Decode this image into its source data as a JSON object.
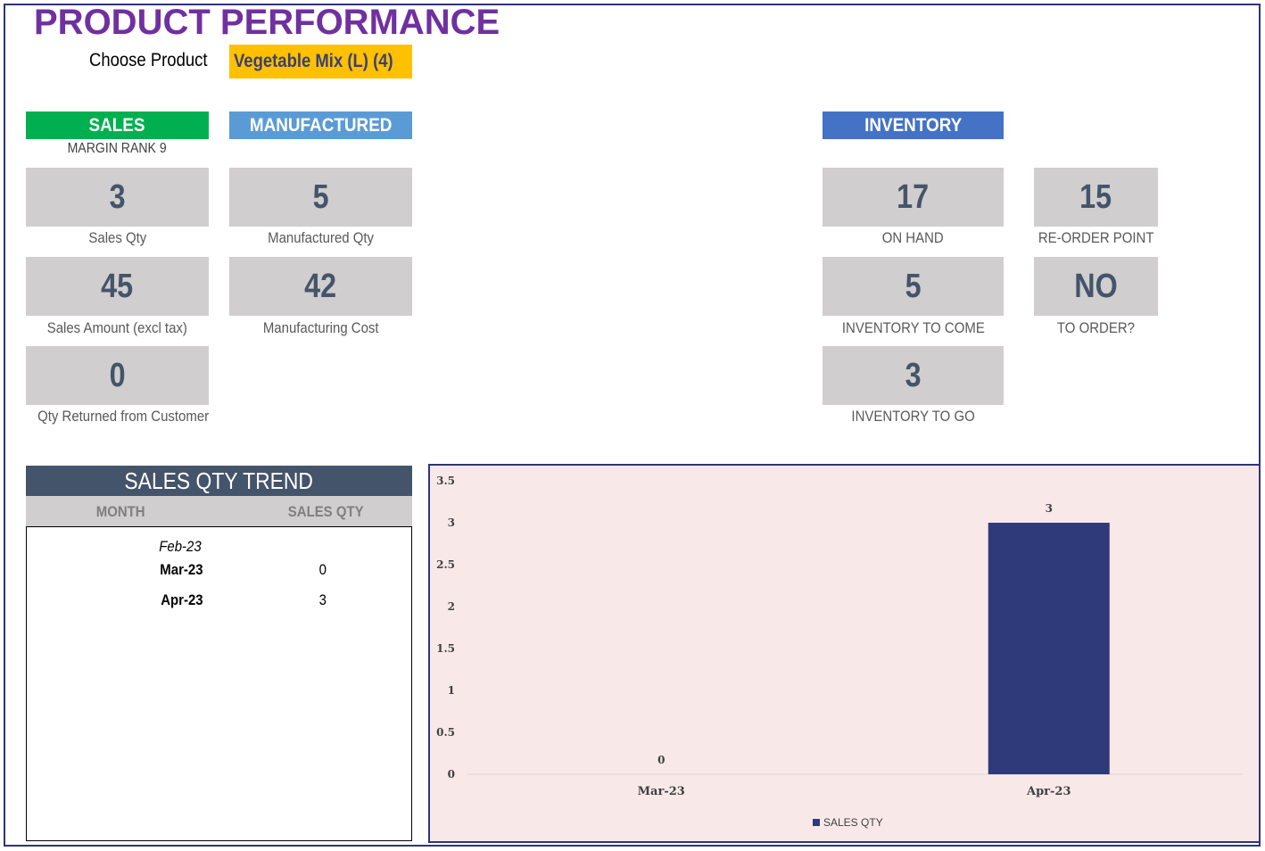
{
  "title": "PRODUCT PERFORMANCE",
  "selector": {
    "label": "Choose Product",
    "value": "Vegetable Mix (L) (4)"
  },
  "sales": {
    "header": "SALES",
    "margin_rank": "MARGIN RANK 9",
    "qty": {
      "value": "3",
      "label": "Sales Qty"
    },
    "amount": {
      "value": "45",
      "label": "Sales Amount (excl tax)"
    },
    "returned": {
      "value": "0",
      "label": "Qty Returned from Customer"
    }
  },
  "manufactured": {
    "header": "MANUFACTURED",
    "qty": {
      "value": "5",
      "label": "Manufactured Qty"
    },
    "cost": {
      "value": "42",
      "label": "Manufacturing Cost"
    }
  },
  "inventory": {
    "header": "INVENTORY",
    "on_hand": {
      "value": "17",
      "label": "ON HAND"
    },
    "reorder_point": {
      "value": "15",
      "label": "RE-ORDER POINT"
    },
    "to_come": {
      "value": "5",
      "label": "INVENTORY TO COME"
    },
    "to_order": {
      "value": "NO",
      "label": "TO ORDER?"
    },
    "to_go": {
      "value": "3",
      "label": "INVENTORY TO GO"
    }
  },
  "trend": {
    "header": "SALES QTY TREND",
    "col_month": "MONTH",
    "col_qty": "SALES QTY",
    "rows": [
      {
        "month": "Feb-23",
        "qty": ""
      },
      {
        "month": "Mar-23",
        "qty": "0"
      },
      {
        "month": "Apr-23",
        "qty": "3"
      }
    ]
  },
  "colors": {
    "title": "#7030a0",
    "sales_header": "#00b050",
    "manufactured_header": "#5b9bd5",
    "inventory_header": "#4472c4",
    "kpi_bg": "#d0cece",
    "kpi_text": "#44546a",
    "selector_bg": "#ffc000",
    "bar": "#2e3a7a",
    "chart_bg": "#f9e8e8"
  },
  "chart_data": {
    "type": "bar",
    "categories": [
      "Mar-23",
      "Apr-23"
    ],
    "series": [
      {
        "name": "SALES QTY",
        "values": [
          0,
          3
        ]
      }
    ],
    "ylim": [
      0,
      3.5
    ],
    "yticks": [
      "0",
      "0.5",
      "1",
      "1.5",
      "2",
      "2.5",
      "3",
      "3.5"
    ],
    "data_labels": [
      "0",
      "3"
    ],
    "legend": "bottom",
    "grid": false
  }
}
